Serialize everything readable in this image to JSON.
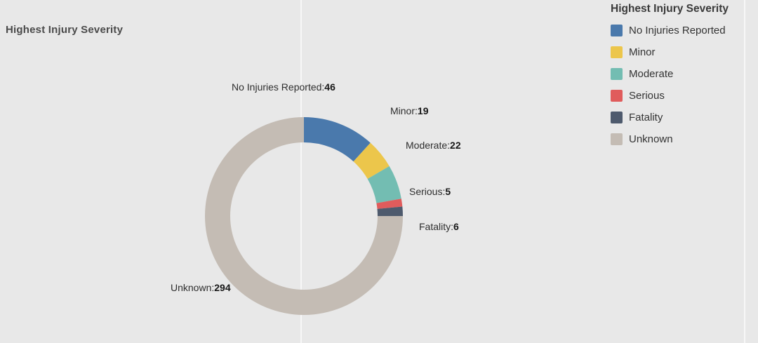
{
  "page": {
    "background_color": "#e8e8e8"
  },
  "legend": {
    "title": "Highest  Injury Severity",
    "position": "top-right"
  },
  "chart_data": {
    "type": "pie",
    "subtype": "donut",
    "title": "Highest Injury Severity",
    "total": 392,
    "start_angle_deg": 0,
    "direction": "clockwise",
    "inner_radius_ratio": 0.74,
    "label_format": "{name}:{value}",
    "legend_position": "top-right",
    "series": [
      {
        "name": "No Injuries Reported",
        "value": 46,
        "color": "#4a79ac"
      },
      {
        "name": "Minor",
        "value": 19,
        "color": "#ecc64b"
      },
      {
        "name": "Moderate",
        "value": 22,
        "color": "#73bdb2"
      },
      {
        "name": "Serious",
        "value": 5,
        "color": "#e05c5c"
      },
      {
        "name": "Fatality",
        "value": 6,
        "color": "#4e5a6d"
      },
      {
        "name": "Unknown",
        "value": 294,
        "color": "#c4bcb4"
      }
    ]
  }
}
